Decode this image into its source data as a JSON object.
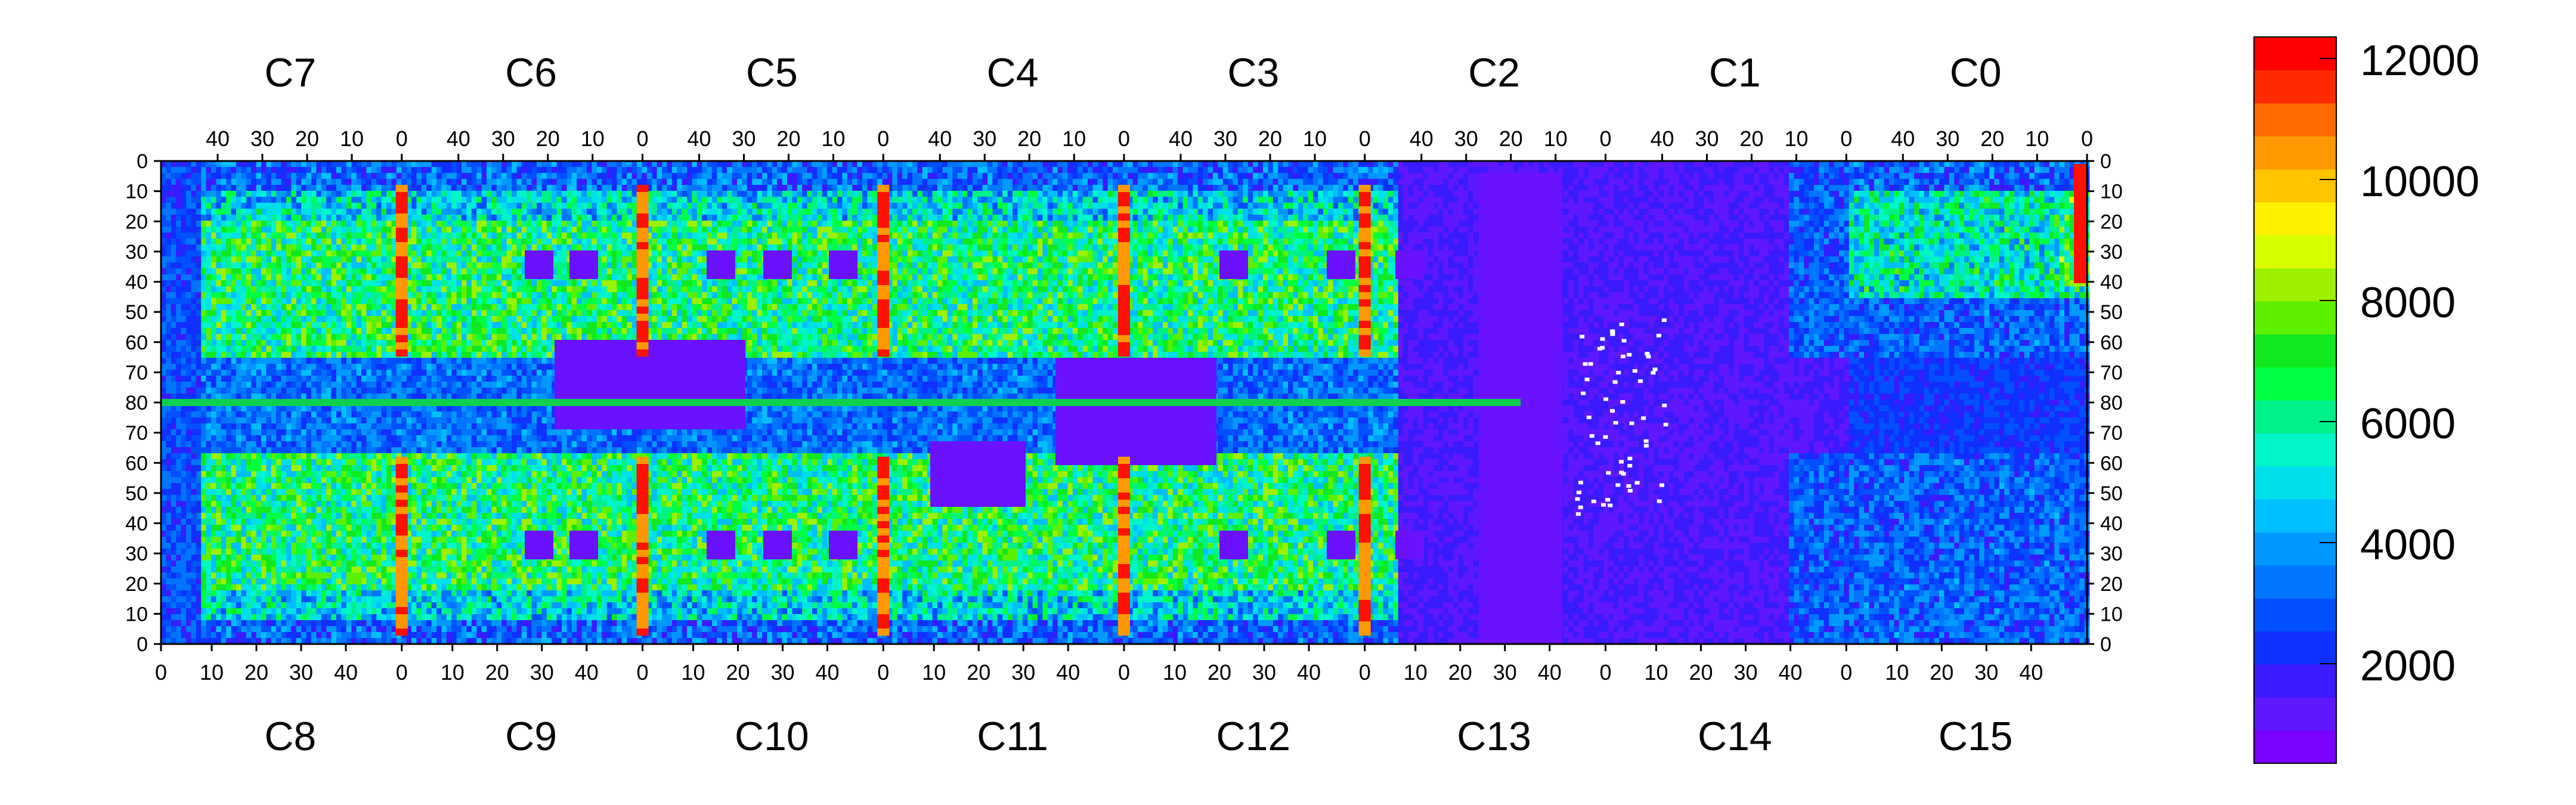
{
  "chart_data": {
    "type": "heatmap",
    "title": "",
    "top_chip_labels": [
      "C7",
      "C6",
      "C5",
      "C4",
      "C3",
      "C2",
      "C1",
      "C0"
    ],
    "bottom_chip_labels": [
      "C8",
      "C9",
      "C10",
      "C11",
      "C12",
      "C13",
      "C14",
      "C15"
    ],
    "top_axis_ticks": [
      "40",
      "30",
      "20",
      "10",
      "0"
    ],
    "bottom_axis_ticks": [
      "0",
      "10",
      "20",
      "30",
      "40"
    ],
    "left_axis_ticks": [
      "0",
      "10",
      "20",
      "30",
      "40",
      "50",
      "60",
      "70",
      "80",
      "70",
      "60",
      "50",
      "40",
      "30",
      "20",
      "10",
      "0"
    ],
    "right_axis_ticks": [
      "0",
      "10",
      "20",
      "30",
      "40",
      "50",
      "60",
      "70",
      "80",
      "70",
      "60",
      "50",
      "40",
      "30",
      "20",
      "10",
      "0"
    ],
    "colorbar": {
      "min": 0,
      "max": 12000,
      "tick_labels": [
        "2000",
        "4000",
        "6000",
        "8000",
        "10000",
        "12000"
      ],
      "tick_values": [
        2000,
        4000,
        6000,
        8000,
        10000,
        12000
      ]
    },
    "colors": {
      "palette": [
        "#7a00ff",
        "#5f17ff",
        "#3a1bff",
        "#1030ff",
        "#0050ff",
        "#0075ff",
        "#0099ff",
        "#00bfff",
        "#00e0ea",
        "#00f5c8",
        "#00f08a",
        "#00ff40",
        "#10e820",
        "#5cf000",
        "#9cf000",
        "#d8ff00",
        "#fff000",
        "#ffc400",
        "#ff9800",
        "#ff6a00",
        "#ff2a00",
        "#ff0000"
      ],
      "stripe_hot": "#ff1100",
      "gap": "#ffffff"
    },
    "grid": false
  }
}
